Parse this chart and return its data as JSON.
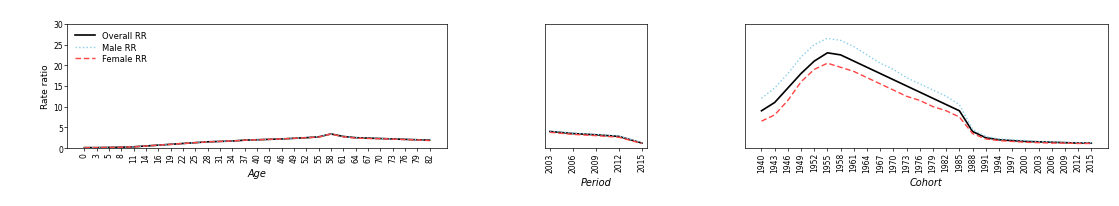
{
  "age_labels": [
    "0",
    "3",
    "5",
    "8",
    "11",
    "14",
    "16",
    "19",
    "22",
    "25",
    "28",
    "31",
    "34",
    "37",
    "40",
    "43",
    "46",
    "49",
    "52",
    "55",
    "58",
    "61",
    "64",
    "67",
    "70",
    "73",
    "76",
    "79",
    "82"
  ],
  "age_overall": [
    0.1,
    0.1,
    0.15,
    0.2,
    0.3,
    0.5,
    0.7,
    0.9,
    1.1,
    1.3,
    1.5,
    1.6,
    1.7,
    1.9,
    2.0,
    2.1,
    2.2,
    2.35,
    2.5,
    2.7,
    3.4,
    2.8,
    2.5,
    2.4,
    2.3,
    2.2,
    2.1,
    2.0,
    1.9
  ],
  "age_male": [
    0.1,
    0.1,
    0.15,
    0.2,
    0.3,
    0.5,
    0.7,
    0.9,
    1.1,
    1.3,
    1.5,
    1.6,
    1.7,
    1.9,
    2.0,
    2.1,
    2.2,
    2.35,
    2.5,
    2.75,
    3.35,
    2.8,
    2.5,
    2.4,
    2.3,
    2.2,
    2.1,
    2.0,
    1.85
  ],
  "age_female": [
    0.1,
    0.1,
    0.15,
    0.2,
    0.3,
    0.5,
    0.7,
    0.9,
    1.1,
    1.3,
    1.5,
    1.6,
    1.7,
    1.9,
    2.0,
    2.1,
    2.2,
    2.35,
    2.5,
    2.65,
    3.4,
    2.7,
    2.4,
    2.3,
    2.25,
    2.15,
    2.05,
    1.95,
    1.8
  ],
  "period_labels": [
    "2003",
    "2006",
    "2009",
    "2012",
    "2015"
  ],
  "period_overall": [
    4.0,
    3.5,
    3.2,
    2.8,
    1.2
  ],
  "period_male": [
    4.1,
    3.6,
    3.3,
    2.9,
    1.3
  ],
  "period_female": [
    3.8,
    3.3,
    3.0,
    2.6,
    1.1
  ],
  "cohort_labels": [
    "1940",
    "1943",
    "1946",
    "1949",
    "1952",
    "1955",
    "1958",
    "1961",
    "1964",
    "1967",
    "1970",
    "1973",
    "1976",
    "1979",
    "1982",
    "1985",
    "1988",
    "1991",
    "1994",
    "1997",
    "2000",
    "2003",
    "2006",
    "2009",
    "2012",
    "2015"
  ],
  "cohort_overall": [
    9.0,
    11.0,
    14.5,
    18.0,
    21.0,
    23.0,
    22.5,
    21.0,
    19.5,
    18.0,
    16.5,
    15.0,
    13.5,
    12.0,
    10.5,
    9.0,
    4.0,
    2.5,
    2.0,
    1.8,
    1.6,
    1.5,
    1.4,
    1.3,
    1.2,
    1.2
  ],
  "cohort_male": [
    12.0,
    14.5,
    18.0,
    22.0,
    25.0,
    26.5,
    26.0,
    24.5,
    22.5,
    20.5,
    19.0,
    17.0,
    15.5,
    14.0,
    12.5,
    10.5,
    4.5,
    2.8,
    2.2,
    2.0,
    1.8,
    1.6,
    1.5,
    1.4,
    1.3,
    1.3
  ],
  "cohort_female": [
    6.5,
    8.0,
    11.5,
    16.0,
    19.0,
    20.5,
    19.5,
    18.5,
    17.0,
    15.5,
    14.0,
    12.5,
    11.5,
    10.0,
    9.0,
    7.5,
    3.5,
    2.2,
    1.8,
    1.6,
    1.4,
    1.3,
    1.2,
    1.2,
    1.1,
    1.1
  ],
  "ylim": [
    0,
    30
  ],
  "yticks": [
    0,
    5,
    10,
    15,
    20,
    25,
    30
  ],
  "ylabel": "Rate ratio",
  "xlabel_age": "Age",
  "xlabel_period": "Period",
  "xlabel_cohort": "Cohort",
  "color_overall": "#000000",
  "color_male": "#87CEEB",
  "color_female": "#FF4444",
  "legend_labels": [
    "Overall RR",
    "Male RR",
    "Female RR"
  ],
  "bg_color": "#FFFFFF"
}
